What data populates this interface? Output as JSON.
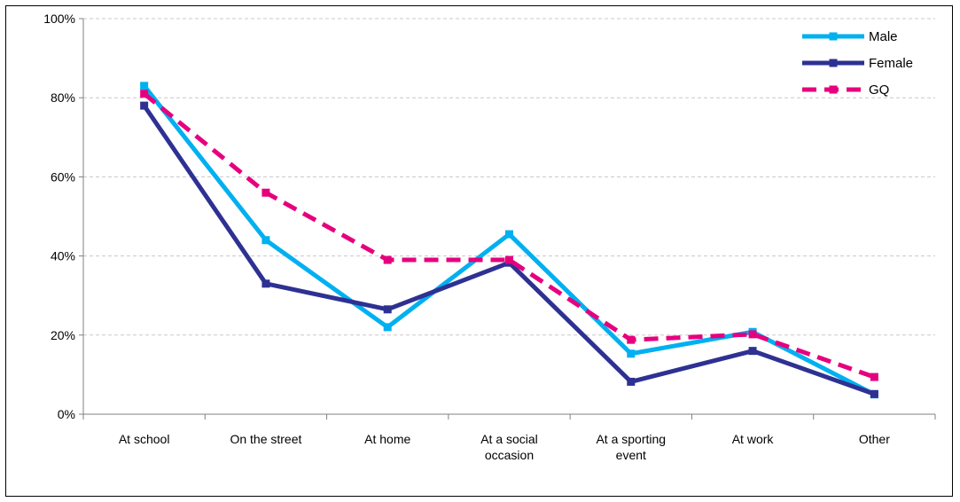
{
  "chart_data": {
    "type": "line",
    "title": "",
    "xlabel": "",
    "ylabel": "",
    "categories": [
      [
        "At school"
      ],
      [
        "On the street"
      ],
      [
        "At home"
      ],
      [
        "At a social",
        "occasion"
      ],
      [
        "At a sporting",
        "event"
      ],
      [
        "At work"
      ],
      [
        "Other"
      ]
    ],
    "ylim": [
      0,
      100
    ],
    "yticks": [
      0,
      20,
      40,
      60,
      80,
      100
    ],
    "ytick_labels": [
      "0%",
      "20%",
      "40%",
      "60%",
      "80%",
      "100%"
    ],
    "grid": "horizontal dashed",
    "legend_position": "top-right",
    "series": [
      {
        "name": "Male",
        "color": "#00B0F0",
        "style": "solid",
        "values": [
          83,
          44,
          22,
          45.5,
          15.3,
          20.8,
          5
        ]
      },
      {
        "name": "Female",
        "color": "#2E3192",
        "style": "solid",
        "values": [
          78,
          33,
          26.5,
          38.3,
          8.2,
          16,
          5.1
        ]
      },
      {
        "name": "GQ",
        "color": "#E6007E",
        "style": "dashed",
        "values": [
          81,
          56,
          39,
          39,
          18.8,
          20.2,
          9.4
        ]
      }
    ]
  }
}
